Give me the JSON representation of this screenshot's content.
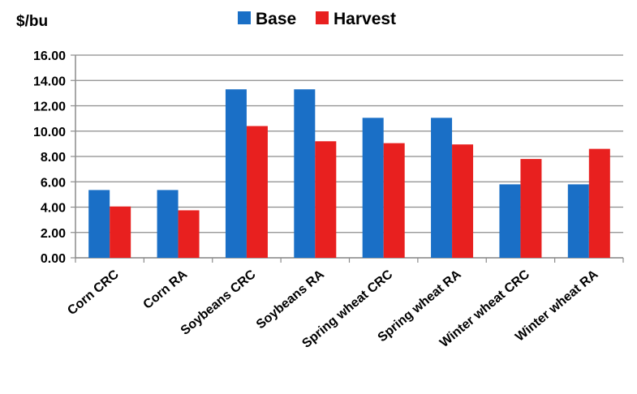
{
  "chart_data": {
    "type": "bar",
    "ylabel": "$/bu",
    "categories": [
      "Corn CRC",
      "Corn RA",
      "Soybeans CRC",
      "Soybeans RA",
      "Spring wheat CRC",
      "Spring wheat RA",
      "Winter wheat CRC",
      "Winter wheat RA"
    ],
    "series": [
      {
        "name": "Base",
        "color": "#1a6fc6",
        "values": [
          5.35,
          5.35,
          13.3,
          13.3,
          11.05,
          11.05,
          5.8,
          5.8
        ]
      },
      {
        "name": "Harvest",
        "color": "#e8201f",
        "values": [
          4.05,
          3.75,
          10.4,
          9.2,
          9.05,
          8.95,
          7.8,
          8.6
        ]
      }
    ],
    "ylim": [
      0,
      16
    ],
    "yticks": [
      "0.00",
      "2.00",
      "4.00",
      "6.00",
      "8.00",
      "10.00",
      "12.00",
      "14.00",
      "16.00"
    ],
    "grid": true,
    "legend_position": "top"
  }
}
